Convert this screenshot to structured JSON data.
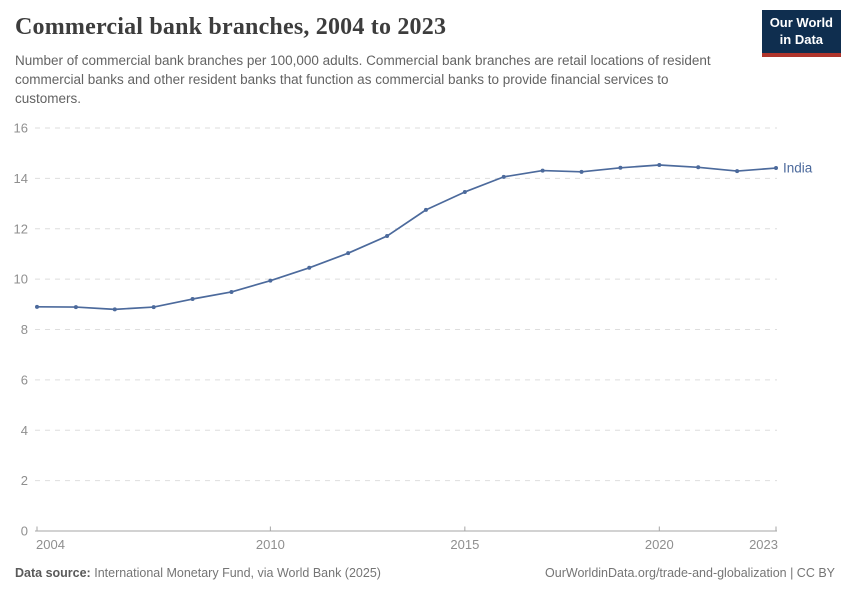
{
  "header": {
    "title": "Commercial bank branches, 2004 to 2023",
    "subtitle": "Number of commercial bank branches per 100,000 adults. Commercial bank branches are retail locations of resident commercial banks and other resident banks that function as commercial banks to provide financial services to customers.",
    "logo": {
      "line1": "Our World",
      "line2": "in Data"
    }
  },
  "chart_data": {
    "type": "line",
    "title": "Commercial bank branches, 2004 to 2023",
    "xlabel": "",
    "ylabel": "Commercial bank branches per 100,000 adults",
    "ylim": [
      0,
      16
    ],
    "yticks": [
      0,
      2,
      4,
      6,
      8,
      10,
      12,
      14,
      16
    ],
    "xticks": [
      2004,
      2010,
      2015,
      2020,
      2023
    ],
    "grid": "horizontal-dashed",
    "legend": "end-of-line-label",
    "x": [
      2004,
      2005,
      2006,
      2007,
      2008,
      2009,
      2010,
      2011,
      2012,
      2013,
      2014,
      2015,
      2016,
      2017,
      2018,
      2019,
      2020,
      2021,
      2022,
      2023
    ],
    "series": [
      {
        "name": "India",
        "color": "#4c6a9c",
        "values": [
          8.9,
          8.89,
          8.8,
          8.89,
          9.21,
          9.49,
          9.94,
          10.45,
          11.03,
          11.71,
          12.75,
          13.46,
          14.06,
          14.31,
          14.26,
          14.42,
          14.53,
          14.44,
          14.29,
          14.41
        ]
      }
    ]
  },
  "colors": {
    "grid": "#dedede",
    "axis": "#a5a5a5",
    "tick_label": "#8f8f8f",
    "line": "#4c6a9c",
    "logo_bg": "#0f2e4f",
    "logo_accent": "#b0352c"
  },
  "footer": {
    "source_label": "Data source:",
    "source_text": "International Monetary Fund, via World Bank (2025)",
    "link_text": "OurWorldinData.org/trade-and-globalization | CC BY"
  }
}
